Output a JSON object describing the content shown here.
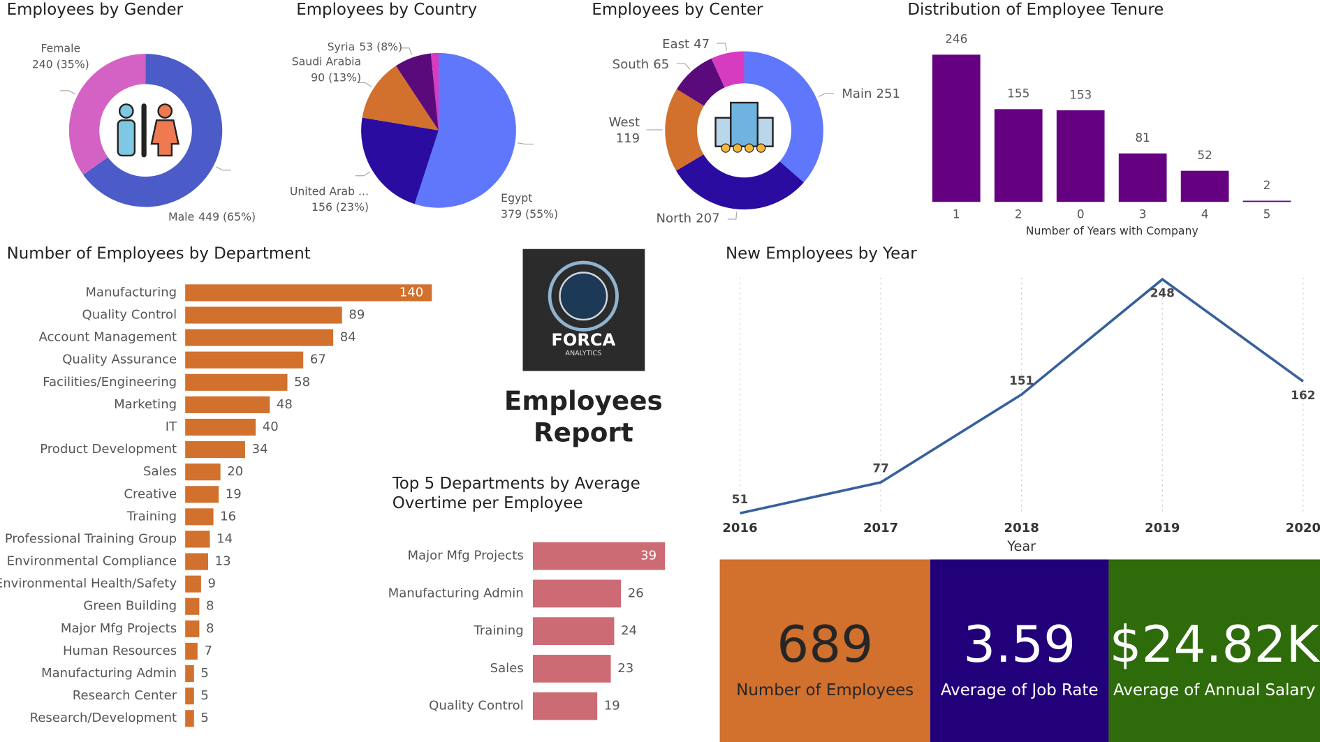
{
  "report_title": "Employees Report",
  "logo": {
    "name": "FORCA",
    "tagline": "ANALYTICS"
  },
  "kpis": [
    {
      "value": "689",
      "label": "Number of Employees",
      "color": "#d2702d",
      "text_color": "#262626"
    },
    {
      "value": "3.59",
      "label": "Average of Job Rate",
      "color": "#22007a",
      "text_color": "#ffffff"
    },
    {
      "value": "$24.82K",
      "label": "Average of Annual Salary",
      "color": "#2e6b0a",
      "text_color": "#ffffff"
    }
  ],
  "chart_data": [
    {
      "type": "donut",
      "title": "Employees by Gender",
      "categories": [
        "Male",
        "Female"
      ],
      "values": [
        449,
        240
      ],
      "value_labels": [
        "449 (65%)",
        "240 (35%)"
      ],
      "colors": [
        "#4b5bc8",
        "#d462c4"
      ]
    },
    {
      "type": "pie",
      "title": "Employees by Country",
      "categories": [
        "Egypt",
        "United Arab ...",
        "Saudi Arabia",
        "Syria",
        null
      ],
      "values": [
        379,
        156,
        90,
        53,
        11
      ],
      "value_labels": [
        "379 (55%)",
        "156 (23%)",
        "90 (13%)",
        "53 (8%)",
        null
      ],
      "colors": [
        "#5f77fb",
        "#2a0ca0",
        "#d2702d",
        "#5a0a7a",
        "#d63bc0"
      ]
    },
    {
      "type": "donut",
      "title": "Employees by Center",
      "categories": [
        "Main",
        "North",
        "West",
        "South",
        "East"
      ],
      "values": [
        251,
        207,
        119,
        65,
        47
      ],
      "colors": [
        "#5f77fb",
        "#2a0ca0",
        "#d2702d",
        "#5a0a7a",
        "#d63bc0"
      ]
    },
    {
      "type": "bar",
      "title": "Distribution of Employee Tenure",
      "x_label": "Number of Years with Company",
      "categories": [
        "1",
        "2",
        "0",
        "3",
        "4",
        "5"
      ],
      "values": [
        246,
        155,
        153,
        81,
        52,
        2
      ],
      "color": "#650080"
    },
    {
      "type": "hbar",
      "title": "Number of Employees by Department",
      "categories": [
        "Manufacturing",
        "Quality Control",
        "Account Management",
        "Quality Assurance",
        "Facilities/Engineering",
        "Marketing",
        "IT",
        "Product Development",
        "Sales",
        "Creative",
        "Training",
        "Professional Training Group",
        "Environmental Compliance",
        "Environmental Health/Safety",
        "Green Building",
        "Major Mfg Projects",
        "Human Resources",
        "Manufacturing Admin",
        "Research Center",
        "Research/Development"
      ],
      "values": [
        140,
        89,
        84,
        67,
        58,
        48,
        40,
        34,
        20,
        19,
        16,
        14,
        13,
        9,
        8,
        8,
        7,
        5,
        5,
        5
      ],
      "color": "#d2702d"
    },
    {
      "type": "hbar",
      "title": "Top 5 Departments by Average Overtime per Employee",
      "categories": [
        "Major Mfg Projects",
        "Manufacturing Admin",
        "Training",
        "Sales",
        "Quality Control"
      ],
      "values": [
        39,
        26,
        24,
        23,
        19
      ],
      "color": "#cd6b75"
    },
    {
      "type": "line",
      "title": "New Employees by Year",
      "x_label": "Year",
      "x": [
        2016,
        2017,
        2018,
        2019,
        2020
      ],
      "values": [
        51,
        77,
        151,
        248,
        162
      ],
      "xlim": [
        2016,
        2020
      ],
      "xticks": [
        2016,
        2017,
        2018,
        2019,
        2020
      ],
      "color": "#37609c",
      "grid": true
    }
  ]
}
